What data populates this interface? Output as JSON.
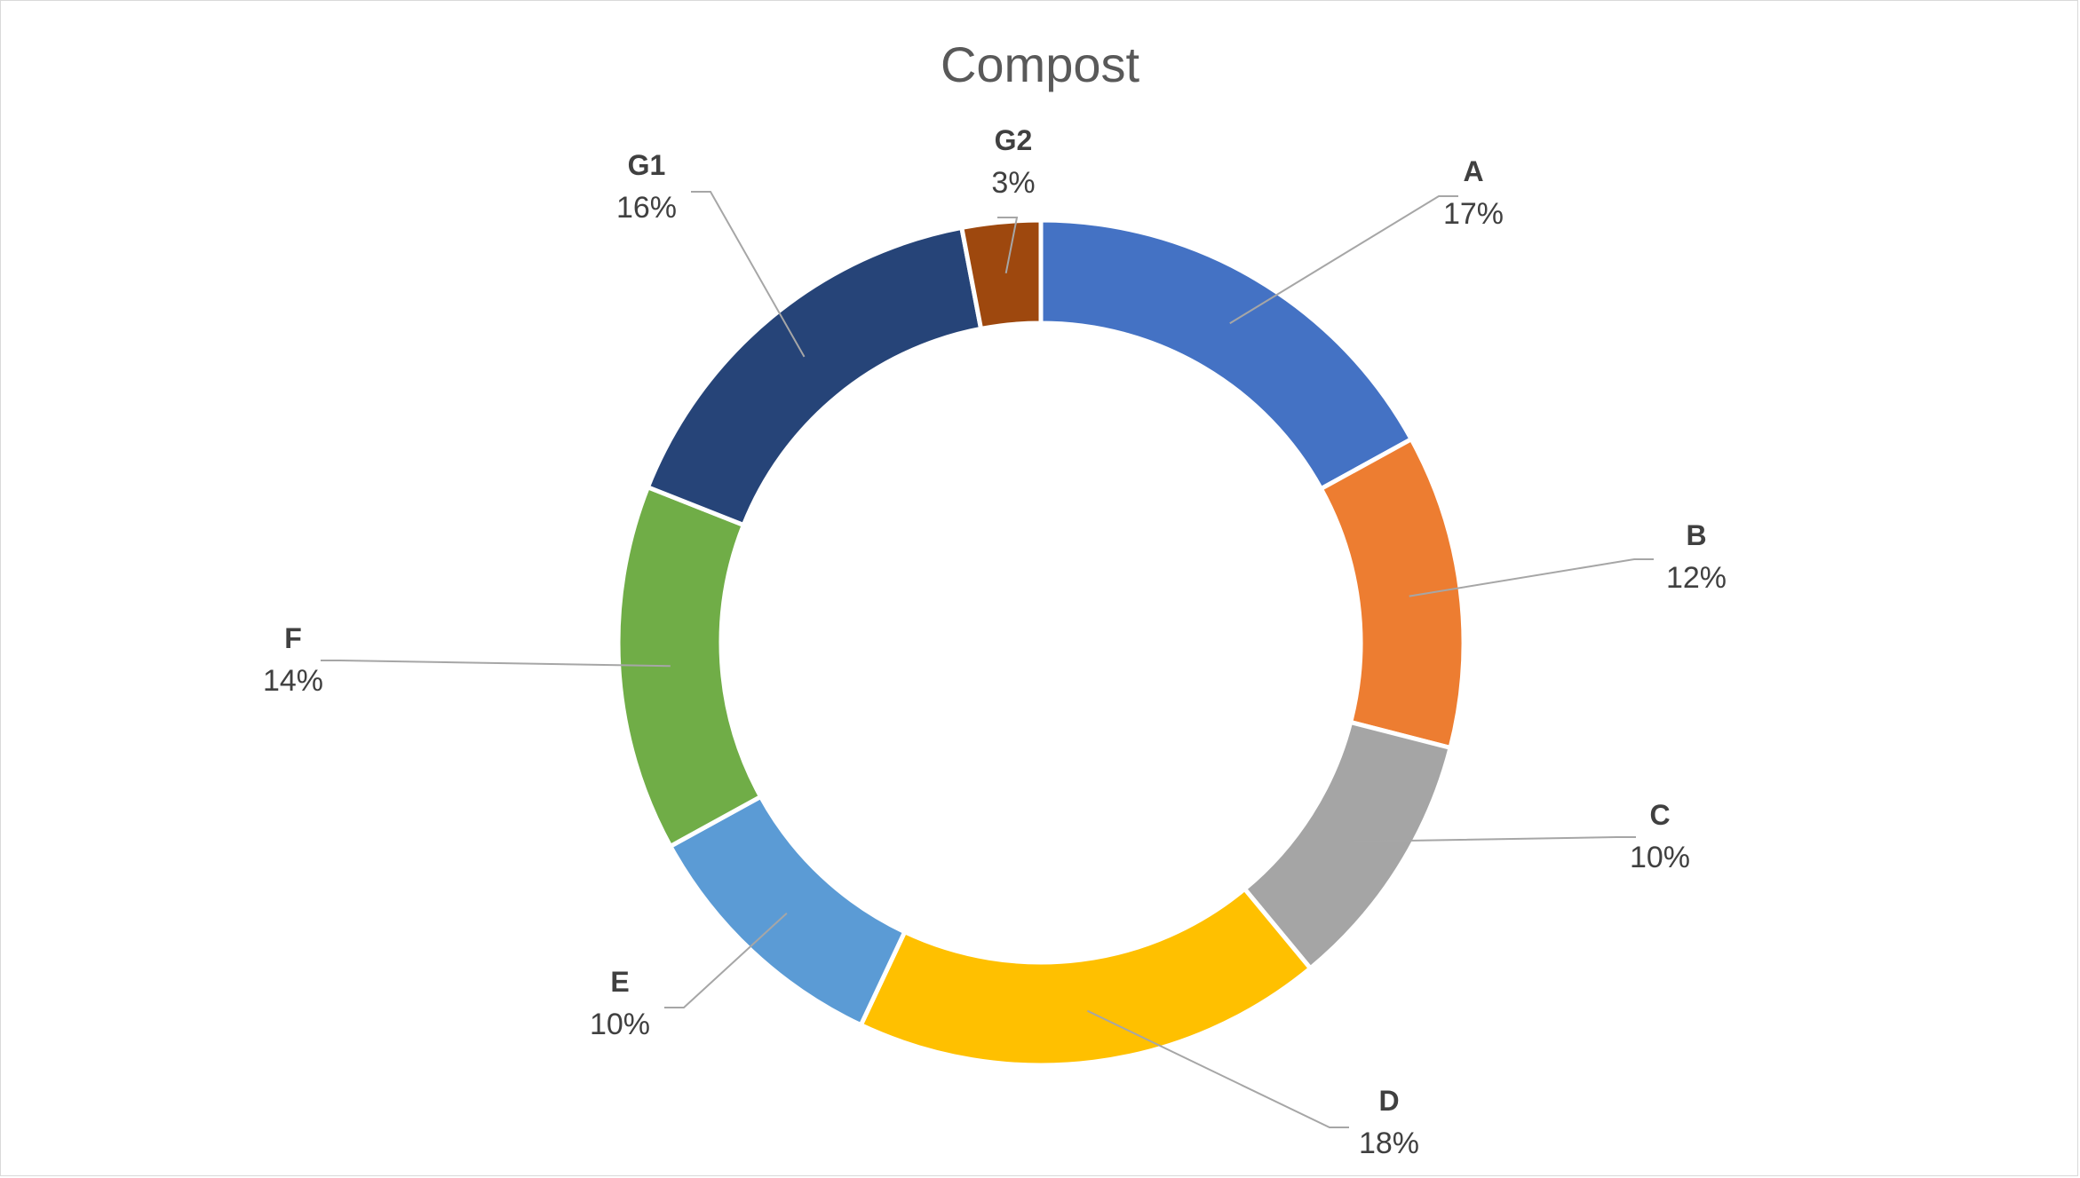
{
  "chart_data": {
    "type": "pie",
    "variant": "doughnut",
    "title": "Compost",
    "categories": [
      "A",
      "B",
      "C",
      "D",
      "E",
      "F",
      "G1",
      "G2"
    ],
    "values": [
      17,
      12,
      10,
      18,
      10,
      14,
      16,
      3
    ],
    "labels": [
      "17%",
      "12%",
      "10%",
      "18%",
      "10%",
      "14%",
      "16%",
      "3%"
    ],
    "colors": [
      "#4472C4",
      "#ED7D31",
      "#A5A5A5",
      "#FFC000",
      "#5B9BD5",
      "#70AD47",
      "#264478",
      "#9E480E"
    ],
    "legend": "none",
    "data_labels": "outside with leader lines"
  }
}
